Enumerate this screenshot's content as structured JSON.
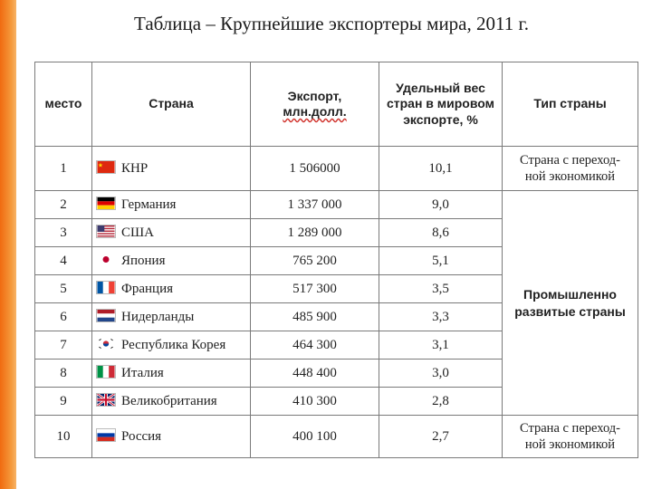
{
  "title": "Таблица – Крупнейшие экспортеры мира, 2011 г.",
  "headers": {
    "place": "место",
    "country": "Страна",
    "export_line1": "Экспорт,",
    "export_line2": "млн.долл.",
    "share_line1": "Удельный вес",
    "share_line2": "стран в мировом",
    "share_line3": "экспорте, %",
    "type": "Тип страны"
  },
  "rows": [
    {
      "place": "1",
      "country": "КНР",
      "flag": "china-flag-icon",
      "export": "1 506000",
      "share": "10,1"
    },
    {
      "place": "2",
      "country": "Германия",
      "flag": "germany-flag-icon",
      "export": "1 337 000",
      "share": "9,0"
    },
    {
      "place": "3",
      "country": "США",
      "flag": "usa-flag-icon",
      "export": "1 289 000",
      "share": "8,6"
    },
    {
      "place": "4",
      "country": "Япония",
      "flag": "japan-flag-icon",
      "export": "765 200",
      "share": "5,1"
    },
    {
      "place": "5",
      "country": "Франция",
      "flag": "france-flag-icon",
      "export": "517 300",
      "share": "3,5"
    },
    {
      "place": "6",
      "country": "Нидерланды",
      "flag": "netherlands-flag-icon",
      "export": "485 900",
      "share": "3,3"
    },
    {
      "place": "7",
      "country": "Республика Корея",
      "flag": "south-korea-flag-icon",
      "export": "464 300",
      "share": "3,1"
    },
    {
      "place": "8",
      "country": "Италия",
      "flag": "italy-flag-icon",
      "export": "448 400",
      "share": "3,0"
    },
    {
      "place": "9",
      "country": "Великобритания",
      "flag": "uk-flag-icon",
      "export": "410 300",
      "share": "2,8"
    },
    {
      "place": "10",
      "country": "Россия",
      "flag": "russia-flag-icon",
      "export": "400 100",
      "share": "2,7"
    }
  ],
  "types": {
    "transition_line1": "Страна с переход-",
    "transition_line2": "ной экономикой",
    "developed_line1": "Промышленно",
    "developed_line2": "развитые страны"
  },
  "colors": {
    "side_bar": "#f06a10",
    "border": "#7a7a7a"
  }
}
